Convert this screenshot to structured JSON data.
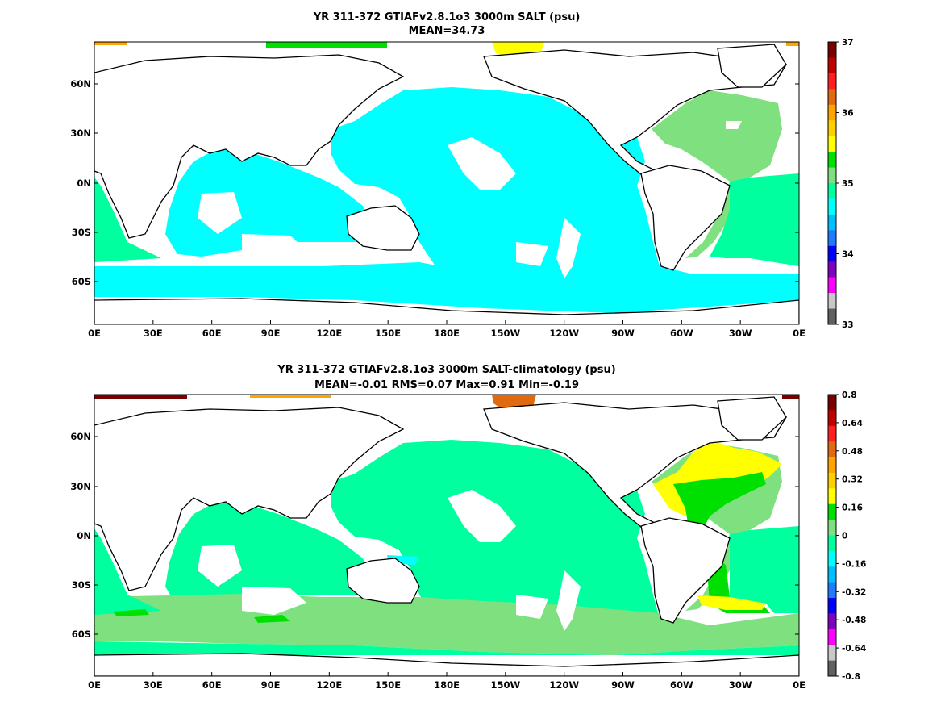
{
  "panels": [
    {
      "title1": "YR 311-372 GTIAFv2.8.1o3 3000m SALT (psu)",
      "title2": "MEAN=34.73",
      "colorbar": {
        "ticks": [
          "37",
          "36",
          "35",
          "34",
          "33"
        ],
        "colors": [
          "#7a0000",
          "#c00000",
          "#ff1f1f",
          "#e06a10",
          "#ffa500",
          "#ffd000",
          "#ffff00",
          "#00e000",
          "#7fe07f",
          "#00ff9f",
          "#00ffff",
          "#00bfff",
          "#1e7bff",
          "#0000ff",
          "#8000c0",
          "#ff00ff",
          "#c8c8c8",
          "#606060"
        ]
      },
      "field_colors": {
        "ocean": "#00ffff",
        "atlantic": "#7fe07f",
        "south_band": "#00ff9f",
        "arctic": "#ffff00",
        "arctic_edge": "#ffa500",
        "greenland_sea": "#00e000"
      }
    },
    {
      "title1": "YR 311-372 GTIAFv2.8.1o3 3000m SALT-climatology (psu)",
      "title2": "MEAN=-0.01   RMS=0.07   Max=0.91   Min=-0.19",
      "colorbar": {
        "ticks": [
          "0.8",
          "0.64",
          "0.48",
          "0.32",
          "0.16",
          "0",
          "-0.16",
          "-0.32",
          "-0.48",
          "-0.64",
          "-0.8"
        ],
        "colors": [
          "#7a0000",
          "#c00000",
          "#ff1f1f",
          "#e06a10",
          "#ffa500",
          "#ffd000",
          "#ffff00",
          "#00e000",
          "#7fe07f",
          "#00ff9f",
          "#00ffff",
          "#00bfff",
          "#1e7bff",
          "#0000ff",
          "#8000c0",
          "#ff00ff",
          "#c8c8c8",
          "#606060"
        ]
      },
      "field_colors": {
        "ocean": "#00ff9f",
        "atlantic": "#7fe07f",
        "south_band": "#7fe07f",
        "arctic": "#e06a10",
        "arctic_edge": "#7a0000",
        "nadw": "#00e000",
        "nadw_edge": "#ffff00",
        "cyan_patch": "#00ffff"
      }
    }
  ],
  "axes": {
    "lon_labels": [
      "0E",
      "30E",
      "60E",
      "90E",
      "120E",
      "150E",
      "180E",
      "150W",
      "120W",
      "90W",
      "60W",
      "30W",
      "0E"
    ],
    "lat_labels": [
      "60N",
      "30N",
      "0N",
      "30S",
      "60S"
    ]
  }
}
